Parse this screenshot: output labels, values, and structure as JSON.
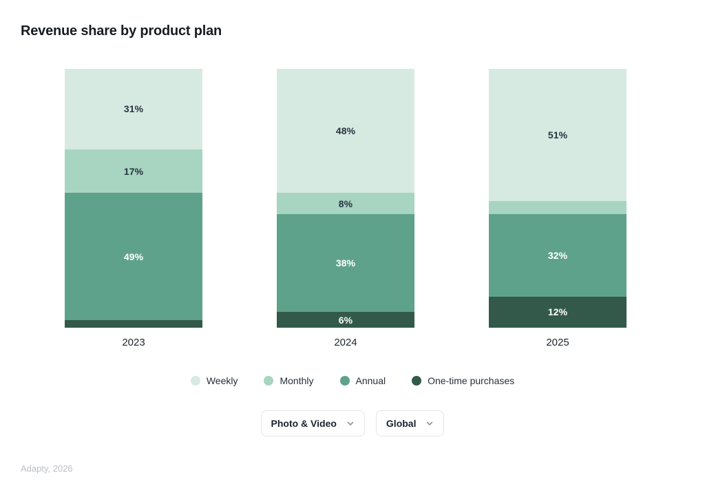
{
  "title": "Revenue share by product plan",
  "chart_data": {
    "type": "stacked-bar",
    "title": "Revenue share by product plan",
    "categories": [
      "2023",
      "2024",
      "2025"
    ],
    "unit": "%",
    "stack_order_top_to_bottom": [
      "Weekly",
      "Monthly",
      "Annual",
      "One-time purchases"
    ],
    "series": [
      {
        "name": "Weekly",
        "color": "#d7eae1",
        "label_color": "#273340",
        "values": [
          31,
          48,
          51
        ],
        "labels": [
          "31%",
          "48%",
          "51%"
        ]
      },
      {
        "name": "Monthly",
        "color": "#a8d4c2",
        "label_color": "#273340",
        "values": [
          17,
          8,
          5
        ],
        "labels": [
          "17%",
          "8%",
          null
        ]
      },
      {
        "name": "Annual",
        "color": "#5fa28b",
        "label_color": "#ffffff",
        "values": [
          49,
          38,
          32
        ],
        "labels": [
          "49%",
          "38%",
          "32%"
        ]
      },
      {
        "name": "One-time purchases",
        "color": "#33594a",
        "label_color": "#ffffff",
        "values": [
          3,
          6,
          12
        ],
        "labels": [
          null,
          "6%",
          "12%"
        ]
      }
    ],
    "legend_position": "bottom",
    "grid": false,
    "ylim": [
      0,
      100
    ]
  },
  "filters": {
    "category": {
      "value": "Photo & Video",
      "icon": "chevron-down-icon"
    },
    "region": {
      "value": "Global",
      "icon": "chevron-down-icon"
    }
  },
  "footer": {
    "caption": "Adapty, 2026"
  },
  "colors": {
    "background": "#ffffff",
    "title_text": "#171c22",
    "axis_text": "#1e242c",
    "legend_text": "#262e38",
    "dropdown_border": "#e3e5e9",
    "dropdown_text": "#1b222c",
    "chevron": "#8d949e",
    "footer_text": "#b9bdc4"
  }
}
